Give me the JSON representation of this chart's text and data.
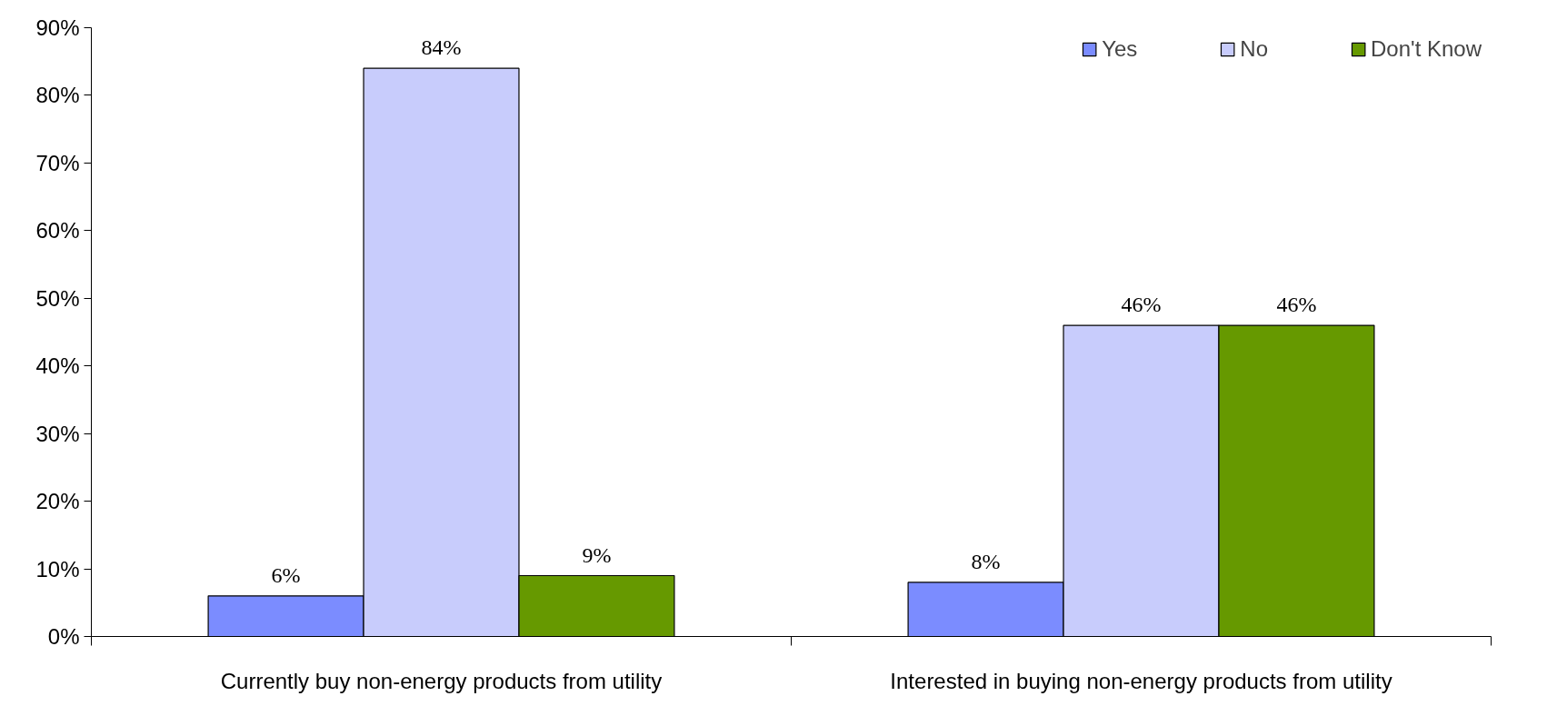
{
  "chart_data": {
    "type": "bar",
    "categories": [
      "Currently buy non-energy products from utility",
      "Interested in buying non-energy products from utility"
    ],
    "series": [
      {
        "name": "Yes",
        "color": "#7b8cff",
        "values": [
          6,
          8
        ],
        "value_labels": [
          "6%",
          "8%"
        ]
      },
      {
        "name": "No",
        "color": "#c8ccfc",
        "values": [
          84,
          46
        ],
        "value_labels": [
          "84%",
          "46%"
        ]
      },
      {
        "name": "Don't Know",
        "color": "#669900",
        "values": [
          9,
          46
        ],
        "value_labels": [
          "9%",
          "46%"
        ]
      }
    ],
    "ylim": [
      0,
      90
    ],
    "yticks": [
      {
        "value": 0,
        "label": "0%"
      },
      {
        "value": 10,
        "label": "10%"
      },
      {
        "value": 20,
        "label": "20%"
      },
      {
        "value": 30,
        "label": "30%"
      },
      {
        "value": 40,
        "label": "40%"
      },
      {
        "value": 50,
        "label": "50%"
      },
      {
        "value": 60,
        "label": "60%"
      },
      {
        "value": 70,
        "label": "70%"
      },
      {
        "value": 80,
        "label": "80%"
      },
      {
        "value": 90,
        "label": "90%"
      }
    ],
    "grid": false,
    "legend": "top right"
  }
}
